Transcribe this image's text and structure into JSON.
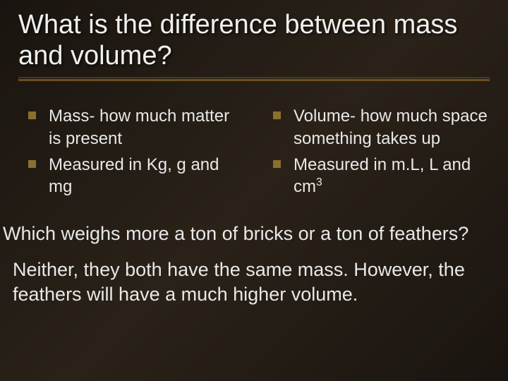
{
  "slide": {
    "title": "What is the difference between mass and volume?",
    "background_gradient": [
      "#1a1410",
      "#2a2218",
      "#1a1410"
    ],
    "title_fontsize": 38,
    "title_color": "#f0f0f0",
    "underline_colors": [
      "#4a3818",
      "#6b5020"
    ],
    "bullet_color": "#8a7030",
    "bullet_size": 11,
    "body_fontsize": 24,
    "body_color": "#e8e8e8",
    "columns": {
      "left": [
        "Mass- how much matter is present",
        "Measured in Kg, g and mg"
      ],
      "right": [
        "Volume- how much space something takes up",
        "Measured in m.L, L and cm"
      ],
      "right_last_superscript": "3"
    },
    "question_text": "Which weighs more a ton of bricks or a ton of feathers?",
    "question_fontsize": 27,
    "answer_text": "Neither, they both have the same mass.  However, the feathers will have a much higher volume.",
    "answer_fontsize": 27
  }
}
